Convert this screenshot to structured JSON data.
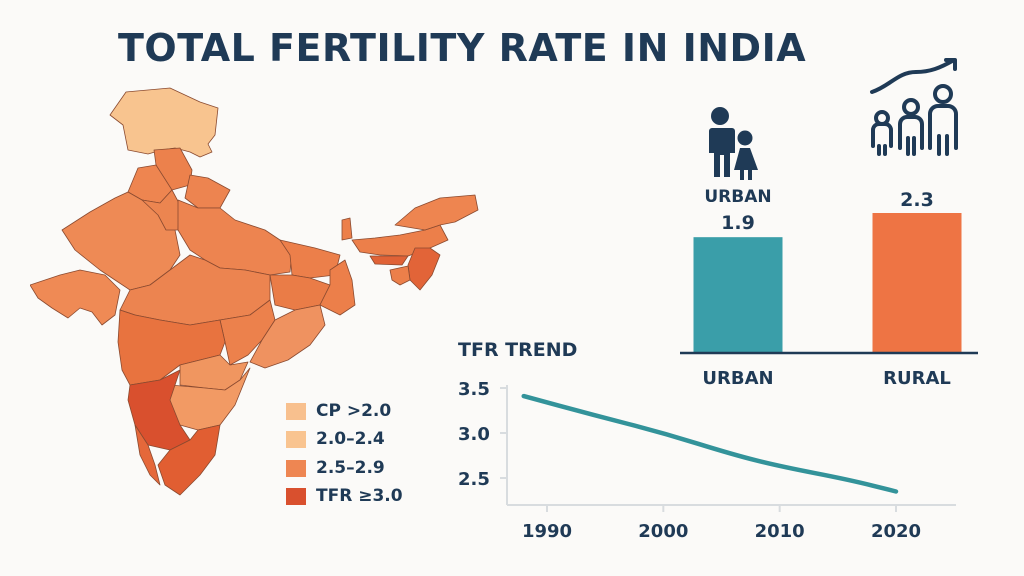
{
  "title": "TOTAL FERTILITY RATE IN INDIA",
  "colors": {
    "text": "#1f3a56",
    "urban": "#3a9ea9",
    "rural": "#ee7444",
    "trend_line": "#33939a",
    "axis": "#d8dcdf",
    "legend_1": "#f8c08e",
    "legend_2": "#f9c490",
    "legend_3": "#ee8652",
    "legend_4": "#d9502e"
  },
  "icons": {
    "urban": "family-icon",
    "rural": "growing-family-trend-icon"
  },
  "map": {
    "title": "India state TFR map",
    "legend": [
      {
        "label": "CP >2.0",
        "color": "#f8c08e"
      },
      {
        "label": "2.0–2.4",
        "color": "#f9c490"
      },
      {
        "label": "2.5–2.9",
        "color": "#ee8652"
      },
      {
        "label": "TFR ≥3.0",
        "color": "#d9502e"
      }
    ]
  },
  "chart_data": [
    {
      "type": "bar",
      "title": "",
      "header_labels": [
        "URBAN",
        "2.3"
      ],
      "categories": [
        "URBAN",
        "RURAL"
      ],
      "values": [
        1.9,
        2.3
      ],
      "value_labels": [
        "1.9",
        "2.3"
      ],
      "colors": [
        "#3a9ea9",
        "#ee7444"
      ],
      "xlabel": "",
      "ylabel": ""
    },
    {
      "type": "line",
      "title": "TFR TREND",
      "x": [
        1988,
        1994,
        2000,
        2006,
        2010,
        2016,
        2020
      ],
      "series": [
        {
          "name": "TFR",
          "values": [
            3.41,
            3.2,
            3.0,
            2.76,
            2.63,
            2.48,
            2.35
          ]
        }
      ],
      "x_ticks": [
        "1990",
        "2000",
        "2010",
        "2020"
      ],
      "y_ticks": [
        "3.5",
        "3.0",
        "2.5"
      ],
      "xlim": [
        1985,
        2024
      ],
      "ylim": [
        2.2,
        3.5
      ],
      "xlabel": "",
      "ylabel": "",
      "grid": false
    }
  ]
}
